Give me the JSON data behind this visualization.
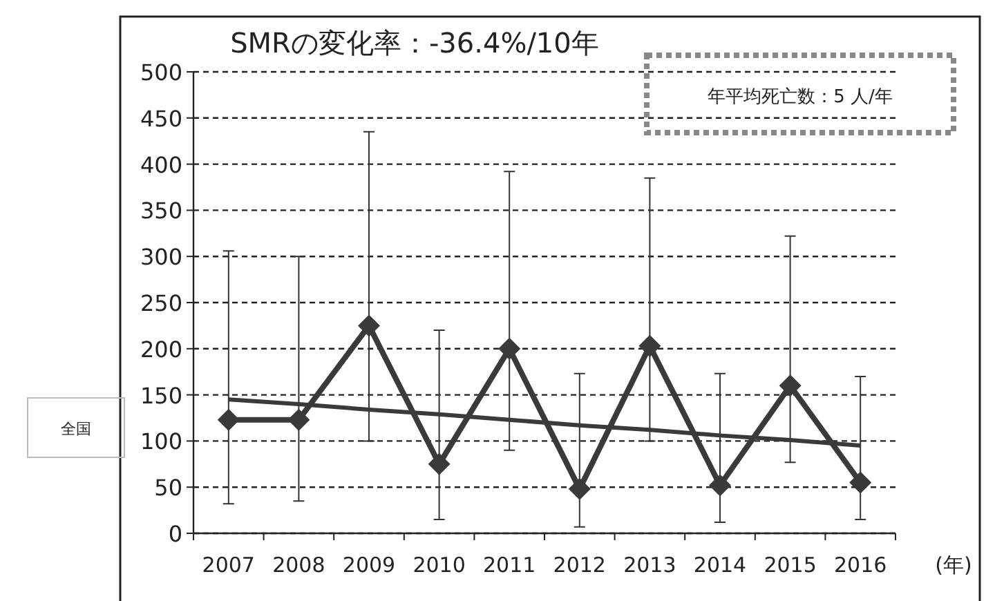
{
  "chart_data": {
    "type": "line",
    "title": "SMRの変化率：-36.4%/10年",
    "xlabel": "(年)",
    "categories": [
      "2007",
      "2008",
      "2009",
      "2010",
      "2011",
      "2012",
      "2013",
      "2014",
      "2015",
      "2016"
    ],
    "series": [
      {
        "color": "#3a3a3a",
        "values": [
          123,
          123,
          225,
          75,
          200,
          48,
          203,
          52,
          160,
          55
        ],
        "errors": [
          [
            32,
            306
          ],
          [
            35,
            300
          ],
          [
            100,
            435
          ],
          [
            15,
            220
          ],
          [
            90,
            392
          ],
          [
            7,
            173
          ],
          [
            100,
            385
          ],
          [
            12,
            173
          ],
          [
            77,
            322
          ],
          [
            15,
            170
          ]
        ],
        "marker": "diamond"
      },
      {
        "color": "#3a3a3a",
        "values": [
          145,
          140,
          134,
          129,
          123,
          117,
          112,
          106,
          101,
          95
        ],
        "marker": "none"
      }
    ],
    "annotations": [
      "年平均死亡数：5 人/年",
      "全国"
    ],
    "ylim": [
      0,
      500
    ],
    "yticks": [
      0,
      50,
      100,
      150,
      200,
      250,
      300,
      350,
      400,
      450,
      500
    ],
    "grid": "y",
    "line_style": "solid"
  }
}
